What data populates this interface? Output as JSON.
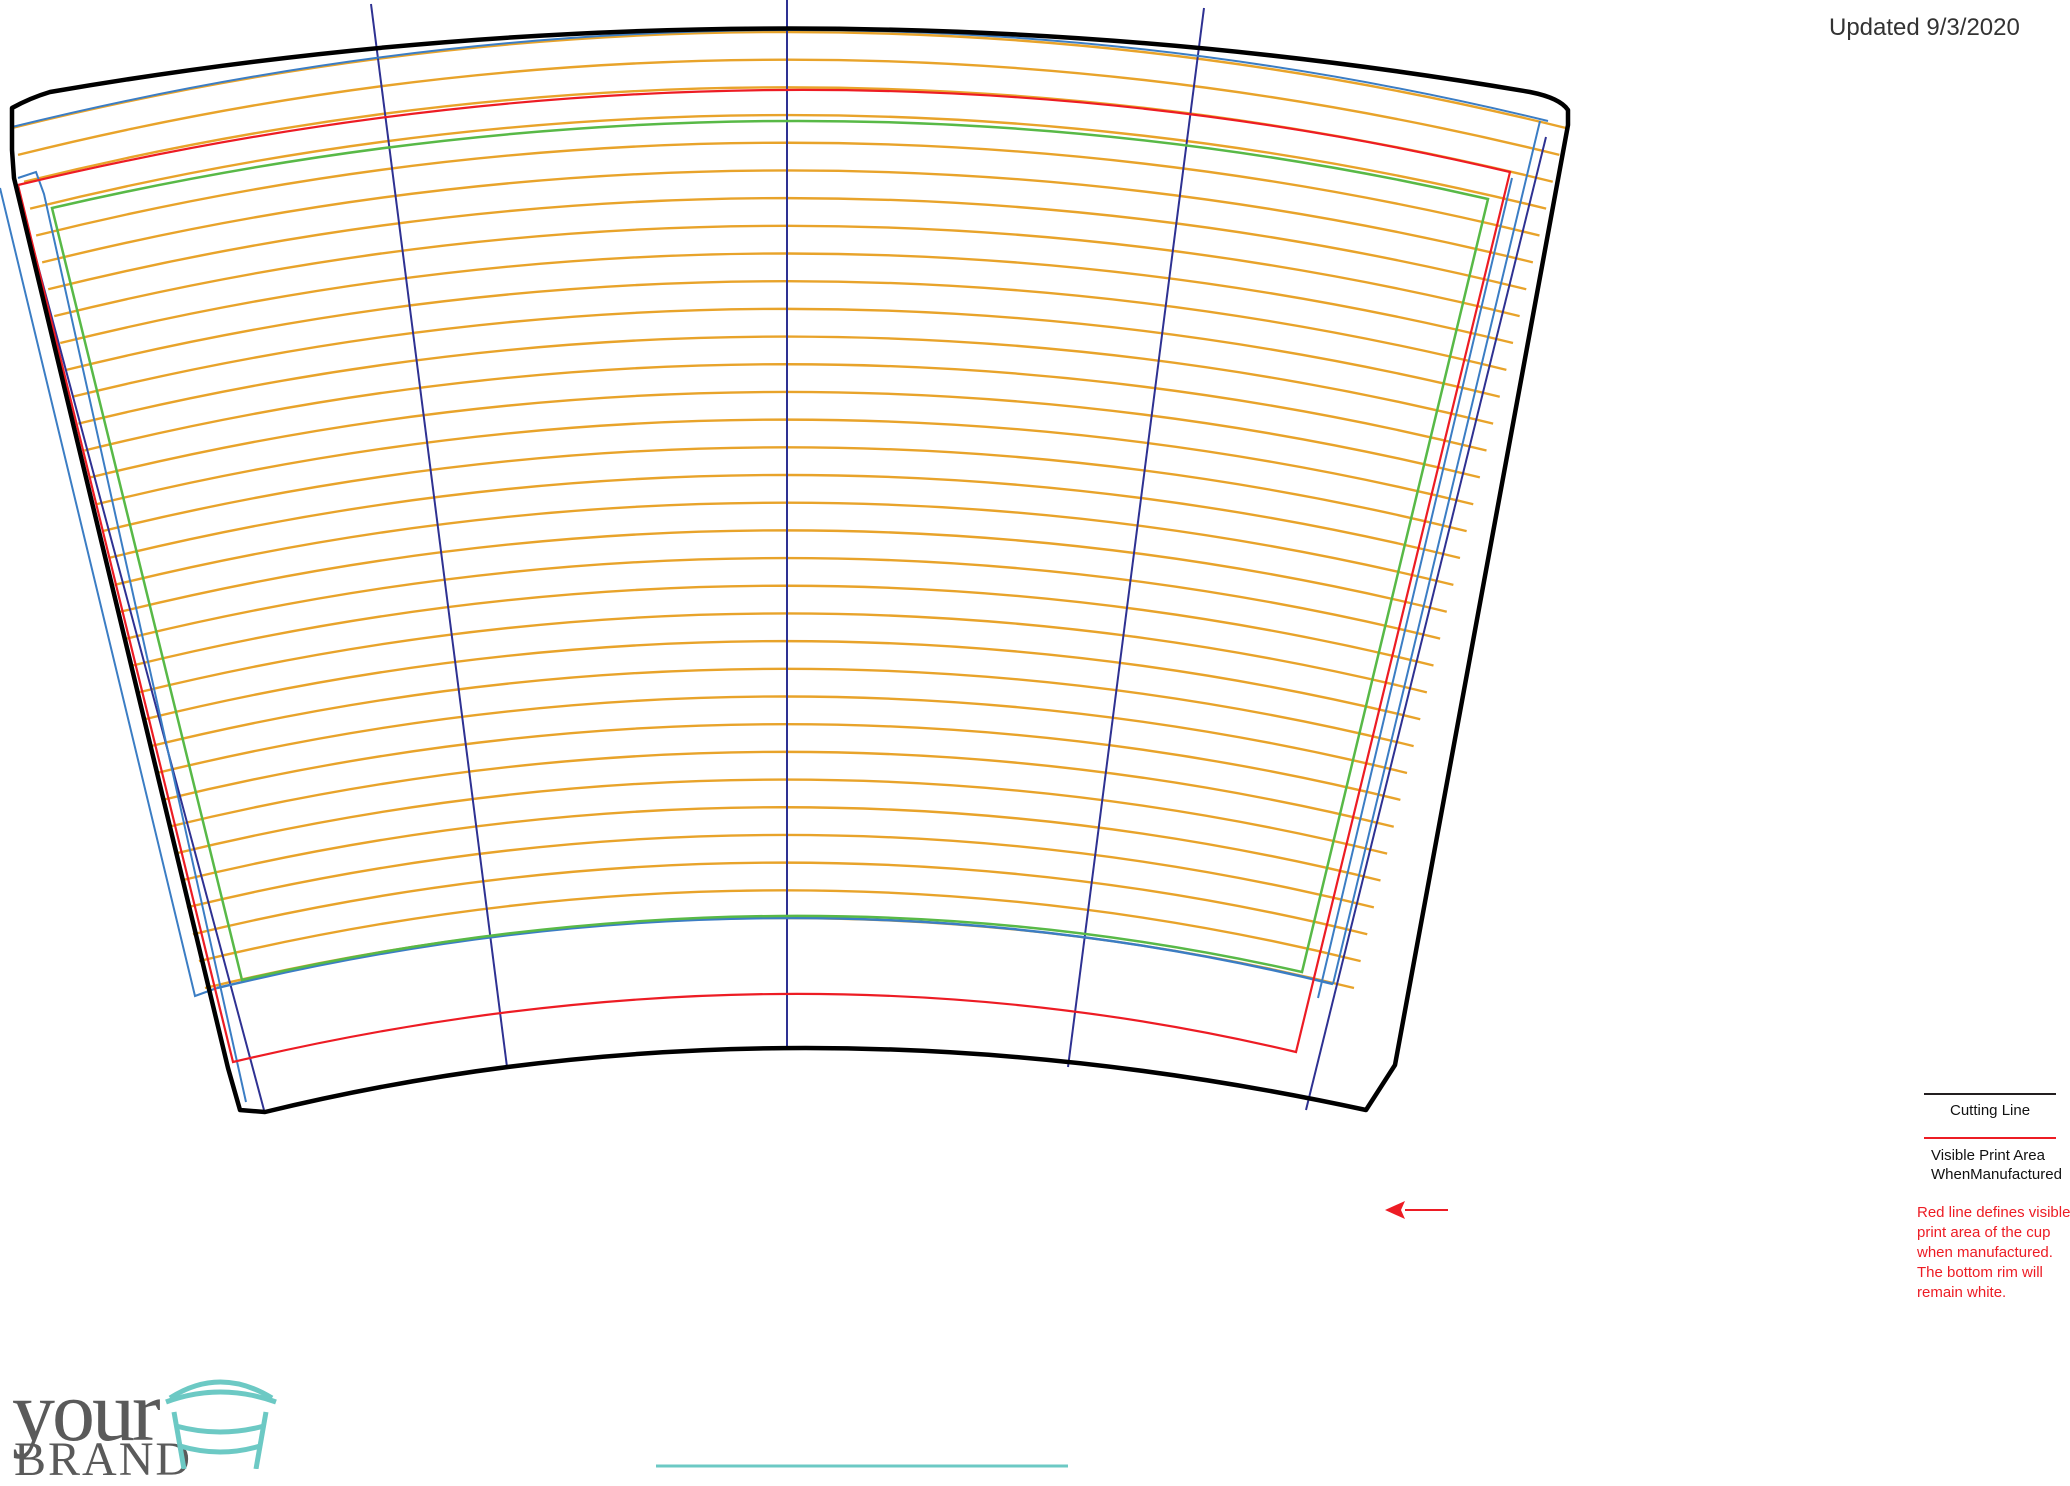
{
  "header": {
    "updated_text": "Updated 9/3/2020"
  },
  "legend": {
    "items": [
      {
        "label": "Cutting Line",
        "color": "#231f20"
      },
      {
        "label": "Visible Print Area\nWhenManufactured",
        "color": "#ed1c24"
      }
    ]
  },
  "note": {
    "text": "Red line defines visible\nprint area of the cup\nwhen manufactured.\nThe bottom rim will\nremain white.",
    "color": "#ed1c24"
  },
  "logo": {
    "word1": "your",
    "word2": "BRAND",
    "text_color": "#5a5a5a",
    "cup_color": "#6cc9c4"
  },
  "template": {
    "colors": {
      "cutting_line": "#000000",
      "print_area": "#ed1c24",
      "safe_area": "#58b947",
      "bleed": "#3b7dc4",
      "center_guides": "#2e3192",
      "guide_arcs": "#e8a32a",
      "tab": "#6cc9c4"
    },
    "guide_arc_count": 33,
    "radial_guide_count": 5
  }
}
